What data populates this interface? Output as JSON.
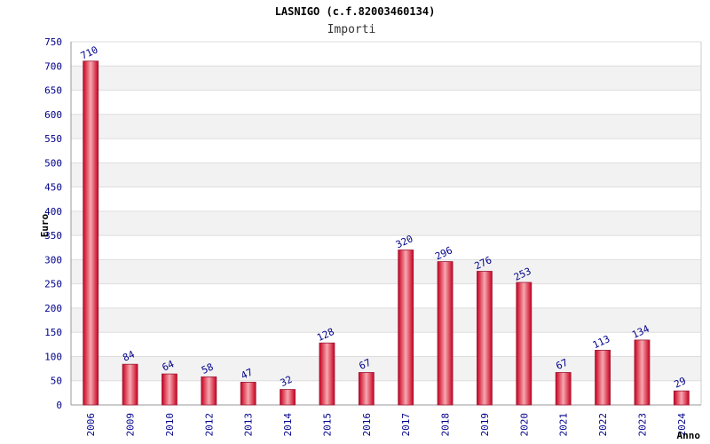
{
  "chart_data": {
    "type": "bar",
    "title": "LASNIGO (c.f.82003460134)",
    "subtitle": "Importi",
    "ylabel": "Euro",
    "xlabel": "Anno",
    "ylim": [
      0,
      750
    ],
    "yticks": [
      0,
      50,
      100,
      150,
      200,
      250,
      300,
      350,
      400,
      450,
      500,
      550,
      600,
      650,
      700,
      750
    ],
    "grid": true,
    "categories": [
      "2006",
      "2009",
      "2010",
      "2012",
      "2013",
      "2014",
      "2015",
      "2016",
      "2017",
      "2018",
      "2019",
      "2020",
      "2021",
      "2022",
      "2023",
      "2024"
    ],
    "values": [
      710,
      84,
      64,
      58,
      47,
      32,
      128,
      67,
      320,
      296,
      276,
      253,
      67,
      113,
      134,
      29
    ],
    "data_labels": [
      "710",
      "84",
      "64",
      "58",
      "47",
      "32",
      "128",
      "67",
      "320",
      "296",
      "276",
      "253",
      "67",
      "113",
      "134",
      "29"
    ],
    "colors": {
      "bar_edge": "#c8001e",
      "bar_center": "#f7a8b0",
      "bar_outline": "#9a1a3a",
      "band": "#f2f2f2",
      "gridline": "#dddddd",
      "tick_text": "#00008b"
    }
  }
}
